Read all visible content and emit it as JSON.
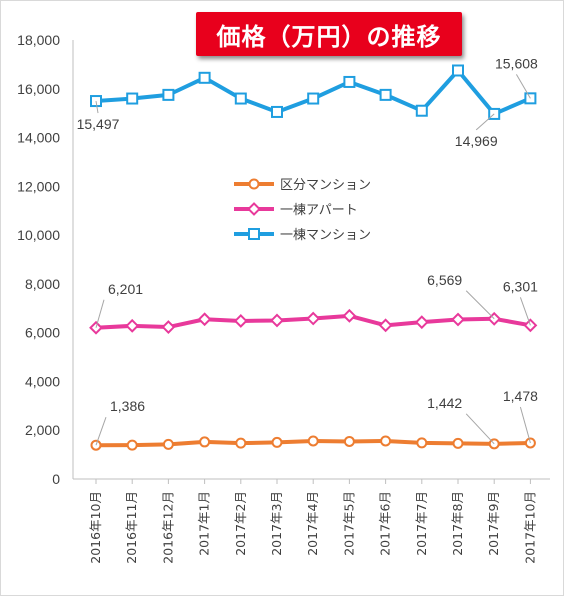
{
  "title": "価格（万円）の推移",
  "chart_data": {
    "type": "line",
    "title": "価格（万円）の推移",
    "categories": [
      "2016年10月",
      "2016年11月",
      "2016年12月",
      "2017年1月",
      "2017年2月",
      "2017年3月",
      "2017年4月",
      "2017年5月",
      "2017年6月",
      "2017年7月",
      "2017年8月",
      "2017年9月",
      "2017年10月"
    ],
    "ylim": [
      0,
      18000
    ],
    "yticks": [
      "0",
      "2,000",
      "4,000",
      "6,000",
      "8,000",
      "10,000",
      "12,000",
      "14,000",
      "16,000",
      "18,000"
    ],
    "grid": false,
    "legend_position": "center",
    "series": [
      {
        "name": "区分マンション",
        "color": "#ed7d31",
        "marker": "circle",
        "values": [
          1386,
          1390,
          1420,
          1520,
          1470,
          1500,
          1560,
          1540,
          1560,
          1480,
          1460,
          1442,
          1478
        ]
      },
      {
        "name": "一棟アパート",
        "color": "#e8399b",
        "marker": "diamond",
        "values": [
          6201,
          6280,
          6230,
          6550,
          6480,
          6500,
          6580,
          6690,
          6300,
          6430,
          6540,
          6569,
          6301
        ]
      },
      {
        "name": "一棟マンション",
        "color": "#1f9ee0",
        "marker": "square",
        "values": [
          15497,
          15600,
          15750,
          16450,
          15600,
          15050,
          15600,
          16280,
          15750,
          15100,
          16750,
          14969,
          15608
        ]
      }
    ],
    "data_labels": [
      {
        "series": 0,
        "index": 0,
        "text": "1,386"
      },
      {
        "series": 0,
        "index": 11,
        "text": "1,442"
      },
      {
        "series": 0,
        "index": 12,
        "text": "1,478"
      },
      {
        "series": 1,
        "index": 0,
        "text": "6,201"
      },
      {
        "series": 1,
        "index": 11,
        "text": "6,569"
      },
      {
        "series": 1,
        "index": 12,
        "text": "6,301"
      },
      {
        "series": 2,
        "index": 0,
        "text": "15,497"
      },
      {
        "series": 2,
        "index": 11,
        "text": "14,969"
      },
      {
        "series": 2,
        "index": 12,
        "text": "15,608"
      }
    ]
  }
}
